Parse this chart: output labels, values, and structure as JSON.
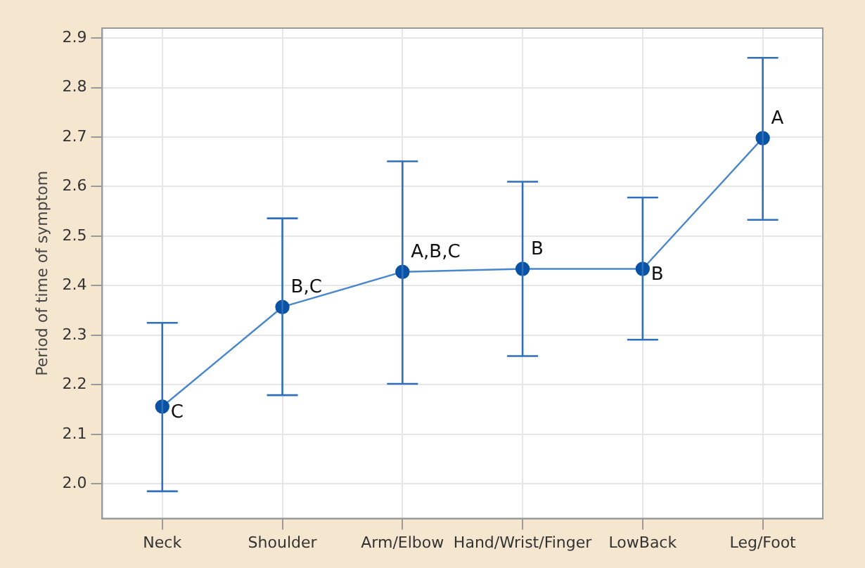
{
  "chart_data": {
    "type": "line",
    "ylabel": "Period of time of symptom",
    "categories": [
      "Neck",
      "Shoulder",
      "Arm/Elbow",
      "Hand/Wrist/Finger",
      "LowBack",
      "Leg/Foot"
    ],
    "series": [
      {
        "color": "#0a52a3",
        "values": [
          2.156,
          2.357,
          2.428,
          2.434,
          2.434,
          2.698
        ],
        "errors": [
          [
            1.985,
            2.325
          ],
          [
            2.179,
            2.536
          ],
          [
            2.202,
            2.651
          ],
          [
            2.258,
            2.61
          ],
          [
            2.291,
            2.578
          ],
          [
            2.533,
            2.86
          ]
        ]
      }
    ],
    "ylim": [
      1.93,
      2.92
    ],
    "yticks": [
      {
        "value": 2.0,
        "label": "2.0"
      },
      2.1,
      2.2,
      2.3,
      2.4,
      2.5,
      2.6,
      2.7,
      2.8,
      2.9
    ],
    "grid": true,
    "marker": "circle",
    "line_style": "solid",
    "annotations": [
      {
        "text": "C",
        "x": "Neck",
        "y": 2.156
      },
      {
        "text": "B,C",
        "x": "Shoulder",
        "y": 2.357
      },
      {
        "text": "A,B,C",
        "x": "Arm/Elbow",
        "y": 2.428
      },
      {
        "text": "B",
        "x": "Hand/Wrist/Finger",
        "y": 2.434
      },
      {
        "text": "B",
        "x": "LowBack",
        "y": 2.434
      },
      {
        "text": "A",
        "x": "Leg/Foot",
        "y": 2.698
      }
    ]
  }
}
